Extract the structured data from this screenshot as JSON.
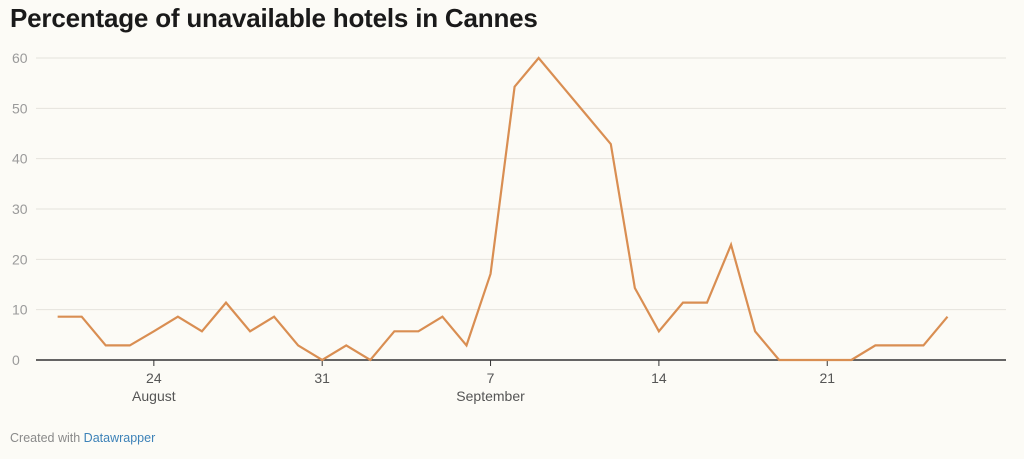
{
  "title": "Percentage of unavailable hotels in Cannes",
  "footer": {
    "prefix": "Created with",
    "link_label": "Datawrapper"
  },
  "colors": {
    "line": "#d98e52",
    "grid": "#e5e3dc",
    "axis": "#333333",
    "tick_text": "#9a9a9a",
    "x_label_text": "#555555"
  },
  "chart_data": {
    "type": "line",
    "title": "Percentage of unavailable hotels in Cannes",
    "xlabel": "",
    "ylabel": "",
    "ylim": [
      0,
      60
    ],
    "y_ticks": [
      0,
      10,
      20,
      30,
      40,
      50,
      60
    ],
    "grid": true,
    "x_ticks": [
      {
        "date": "2020-08-24",
        "label": "24",
        "sublabel": "August"
      },
      {
        "date": "2020-08-31",
        "label": "31",
        "sublabel": ""
      },
      {
        "date": "2020-09-07",
        "label": "7",
        "sublabel": "September"
      },
      {
        "date": "2020-09-14",
        "label": "14",
        "sublabel": ""
      },
      {
        "date": "2020-09-21",
        "label": "21",
        "sublabel": ""
      }
    ],
    "x": [
      "2020-08-20",
      "2020-08-21",
      "2020-08-22",
      "2020-08-23",
      "2020-08-24",
      "2020-08-25",
      "2020-08-26",
      "2020-08-27",
      "2020-08-28",
      "2020-08-29",
      "2020-08-30",
      "2020-08-31",
      "2020-09-01",
      "2020-09-02",
      "2020-09-03",
      "2020-09-04",
      "2020-09-05",
      "2020-09-06",
      "2020-09-07",
      "2020-09-08",
      "2020-09-09",
      "2020-09-10",
      "2020-09-11",
      "2020-09-12",
      "2020-09-13",
      "2020-09-14",
      "2020-09-15",
      "2020-09-16",
      "2020-09-17",
      "2020-09-18",
      "2020-09-19",
      "2020-09-20",
      "2020-09-21",
      "2020-09-22",
      "2020-09-23",
      "2020-09-24",
      "2020-09-25",
      "2020-09-26",
      "2020-09-27",
      "2020-09-28"
    ],
    "series": [
      {
        "values": [
          8.6,
          8.6,
          2.9,
          2.9,
          5.7,
          8.6,
          5.7,
          11.4,
          5.7,
          8.6,
          2.9,
          0,
          2.9,
          0,
          5.7,
          5.7,
          8.6,
          2.9,
          17.1,
          54.3,
          60,
          54.3,
          48.6,
          42.9,
          14.3,
          5.7,
          11.4,
          11.4,
          22.9,
          5.7,
          0,
          0,
          0,
          0,
          2.9,
          2.9,
          2.9,
          8.6,
          null,
          null
        ]
      }
    ]
  }
}
